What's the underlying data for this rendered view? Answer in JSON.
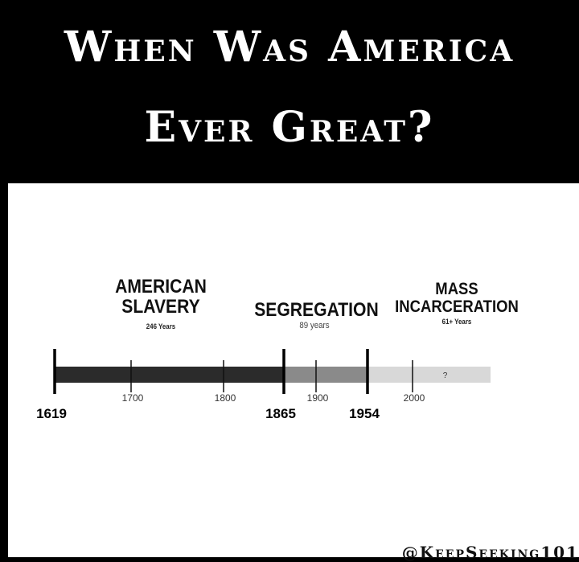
{
  "header": {
    "line1": "When Was America",
    "line2": "Ever Great?"
  },
  "eras": [
    {
      "id": "slavery",
      "label_line1": "AMERICAN",
      "label_line2": "SLAVERY",
      "duration": "246 Years",
      "start": 1619,
      "end": 1865,
      "color": "#2b2b2b"
    },
    {
      "id": "segregation",
      "label_line1": "SEGREGATION",
      "label_line2": "",
      "duration": "89 years",
      "start": 1865,
      "end": 1954,
      "color": "#8a8a8a"
    },
    {
      "id": "mass",
      "label_line1": "MASS",
      "label_line2": "INCARCERATION",
      "duration": "61+ Years",
      "start": 1954,
      "end": 2040,
      "color": "#d8d8d8",
      "marker": "?"
    }
  ],
  "timeline": {
    "major_ticks": [
      1619,
      1865,
      1954
    ],
    "minor_ticks": [
      1700,
      1800,
      1900,
      2000
    ],
    "range": [
      1619,
      2040
    ]
  },
  "credit": "@KeepSeeking101"
}
